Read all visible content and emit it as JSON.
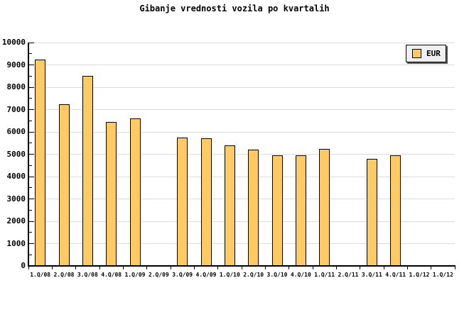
{
  "window": {
    "background": "#FFFFFF"
  },
  "colors": {
    "background": "#FFFFFF",
    "text": "#000000",
    "axis": "#000000",
    "grid": "#DCDCDC",
    "bar_fill": "#FDCA63",
    "bar_border": "#000000",
    "legend_bg": "#EFEFEF",
    "legend_shadow": "#5A5A5A"
  },
  "legend": {
    "label": "EUR"
  },
  "chart_data": {
    "type": "bar",
    "title": "Gibanje vrednosti vozila po kvartalih",
    "xlabel": "",
    "ylabel": "",
    "categories": [
      "1.Q/08",
      "2.Q/08",
      "3.Q/08",
      "4.Q/08",
      "1.Q/09",
      "2.Q/09",
      "3.Q/09",
      "4.Q/09",
      "1.Q/10",
      "2.Q/10",
      "3.Q/10",
      "4.Q/10",
      "1.Q/11",
      "2.Q/11",
      "3.Q/11",
      "4.Q/11",
      "1.Q/12",
      "1.Q/12"
    ],
    "series": [
      {
        "name": "EUR",
        "values": [
          9250,
          7250,
          8500,
          6450,
          6600,
          null,
          5750,
          5700,
          5400,
          5200,
          4950,
          4950,
          5250,
          null,
          4800,
          4950,
          null,
          null
        ]
      }
    ],
    "ylim": [
      0,
      10000
    ],
    "y_tick_step": 1000,
    "y_minor_tick_step": 500,
    "y_tick_labels": [
      "0",
      "1000",
      "2000",
      "3000",
      "4000",
      "5000",
      "6000",
      "7000",
      "8000",
      "9000",
      "10000"
    ],
    "grid": "horizontal",
    "legend_position": "top-right",
    "missing_categories": [
      "2.Q/09",
      "2.Q/11",
      "1.Q/12",
      "1.Q/12"
    ]
  }
}
